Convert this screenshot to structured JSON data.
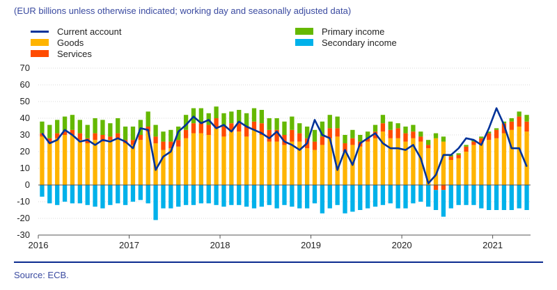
{
  "subtitle": "(EUR billions unless otherwise indicated; working day and seasonally adjusted data)",
  "source": "Source: ECB.",
  "chart_data": {
    "type": "bar",
    "stacked": true,
    "title": "",
    "xlabel": "",
    "ylabel": "",
    "ylim": [
      -30,
      70
    ],
    "yticks": [
      -30,
      -20,
      -10,
      0,
      10,
      20,
      30,
      40,
      50,
      60,
      70
    ],
    "xticks": [
      "2016",
      "2017",
      "2018",
      "2019",
      "2020",
      "2021"
    ],
    "grid": true,
    "legend_position": "top",
    "colors": {
      "goods": "#ffb400",
      "services": "#ff4b00",
      "primary": "#65b800",
      "secondary": "#00b1ea",
      "current": "#003299"
    },
    "x": [
      "2016-01",
      "2016-02",
      "2016-03",
      "2016-04",
      "2016-05",
      "2016-06",
      "2016-07",
      "2016-08",
      "2016-09",
      "2016-10",
      "2016-11",
      "2016-12",
      "2017-01",
      "2017-02",
      "2017-03",
      "2017-04",
      "2017-05",
      "2017-06",
      "2017-07",
      "2017-08",
      "2017-09",
      "2017-10",
      "2017-11",
      "2017-12",
      "2018-01",
      "2018-02",
      "2018-03",
      "2018-04",
      "2018-05",
      "2018-06",
      "2018-07",
      "2018-08",
      "2018-09",
      "2018-10",
      "2018-11",
      "2018-12",
      "2019-01",
      "2019-02",
      "2019-03",
      "2019-04",
      "2019-05",
      "2019-06",
      "2019-07",
      "2019-08",
      "2019-09",
      "2019-10",
      "2019-11",
      "2019-12",
      "2020-01",
      "2020-02",
      "2020-03",
      "2020-04",
      "2020-05",
      "2020-06",
      "2020-07",
      "2020-08",
      "2020-09",
      "2020-10",
      "2020-11",
      "2020-12",
      "2021-01",
      "2021-02",
      "2021-03",
      "2021-04",
      "2021-05"
    ],
    "series": [
      {
        "name": "Goods",
        "key": "goods",
        "values": [
          29,
          25,
          28,
          30,
          30,
          27,
          25,
          27,
          26,
          27,
          28,
          25,
          24,
          27,
          32,
          25,
          21,
          22,
          23,
          28,
          31,
          31,
          30,
          34,
          29,
          32,
          32,
          29,
          33,
          30,
          26,
          26,
          24,
          26,
          26,
          22,
          21,
          24,
          28,
          29,
          20,
          24,
          23,
          26,
          28,
          32,
          28,
          28,
          26,
          28,
          26,
          22,
          28,
          26,
          15,
          16,
          20,
          24,
          25,
          27,
          28,
          31,
          33,
          35,
          32
        ]
      },
      {
        "name": "Services",
        "key": "services",
        "values": [
          2,
          3,
          3,
          2,
          3,
          4,
          3,
          4,
          4,
          2,
          3,
          2,
          3,
          3,
          3,
          4,
          5,
          4,
          4,
          5,
          6,
          6,
          6,
          6,
          6,
          5,
          5,
          6,
          5,
          7,
          7,
          7,
          6,
          7,
          5,
          6,
          5,
          5,
          6,
          5,
          5,
          4,
          3,
          2,
          4,
          5,
          5,
          6,
          5,
          4,
          3,
          2,
          -3,
          -3,
          2,
          2,
          3,
          2,
          3,
          4,
          5,
          6,
          5,
          6,
          6
        ]
      },
      {
        "name": "Primary income",
        "key": "primary",
        "values": [
          7,
          8,
          8,
          9,
          9,
          8,
          8,
          9,
          9,
          8,
          9,
          8,
          8,
          9,
          9,
          7,
          6,
          7,
          8,
          9,
          9,
          9,
          7,
          7,
          8,
          7,
          8,
          8,
          8,
          8,
          7,
          7,
          8,
          8,
          6,
          7,
          7,
          9,
          8,
          7,
          5,
          5,
          4,
          4,
          4,
          5,
          5,
          3,
          4,
          4,
          3,
          3,
          3,
          3,
          1,
          1,
          1,
          1,
          1,
          1,
          1,
          1,
          2,
          3,
          4
        ]
      },
      {
        "name": "Secondary income",
        "key": "secondary",
        "values": [
          -7,
          -11,
          -12,
          -10,
          -11,
          -11,
          -12,
          -13,
          -14,
          -12,
          -11,
          -12,
          -10,
          -9,
          -11,
          -21,
          -14,
          -14,
          -13,
          -12,
          -12,
          -11,
          -11,
          -12,
          -13,
          -12,
          -12,
          -13,
          -14,
          -13,
          -12,
          -14,
          -12,
          -13,
          -14,
          -14,
          -11,
          -17,
          -14,
          -12,
          -17,
          -16,
          -15,
          -14,
          -13,
          -12,
          -11,
          -14,
          -14,
          -11,
          -10,
          -13,
          -12,
          -16,
          -14,
          -12,
          -12,
          -12,
          -14,
          -15,
          -15,
          -15,
          -15,
          -14,
          -15
        ]
      },
      {
        "name": "Current account",
        "key": "current",
        "type": "line",
        "values": [
          31,
          25,
          27,
          33,
          30,
          26,
          27,
          24,
          27,
          26,
          28,
          26,
          22,
          34,
          33,
          9,
          17,
          20,
          32,
          36,
          41,
          37,
          39,
          34,
          36,
          32,
          38,
          35,
          33,
          31,
          28,
          32,
          26,
          24,
          21,
          25,
          39,
          30,
          28,
          9,
          21,
          12,
          25,
          28,
          31,
          25,
          22,
          22,
          21,
          24,
          16,
          1,
          6,
          18,
          18,
          22,
          28,
          27,
          24,
          34,
          46,
          36,
          22,
          22,
          11
        ]
      }
    ]
  }
}
